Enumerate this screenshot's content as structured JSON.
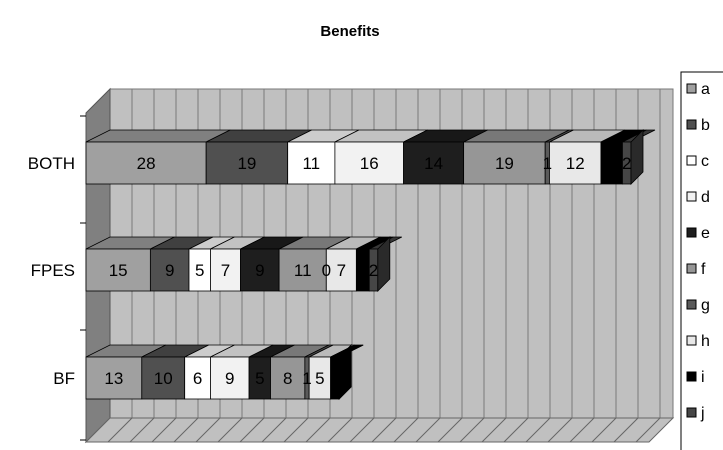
{
  "chart_data": {
    "type": "bar",
    "orientation": "horizontal",
    "stacked": true,
    "three_d": true,
    "title": "Benefits",
    "categories": [
      "BOTH",
      "FPES",
      "BF"
    ],
    "series": [
      {
        "name": "a",
        "values": [
          28,
          15,
          13
        ],
        "color": "#a0a0a0"
      },
      {
        "name": "b",
        "values": [
          19,
          9,
          10
        ],
        "color": "#505050"
      },
      {
        "name": "c",
        "values": [
          11,
          5,
          6
        ],
        "color": "#ffffff"
      },
      {
        "name": "d",
        "values": [
          16,
          7,
          9
        ],
        "color": "#f2f2f2"
      },
      {
        "name": "e",
        "values": [
          14,
          9,
          5
        ],
        "color": "#1e1e1e"
      },
      {
        "name": "f",
        "values": [
          19,
          11,
          8
        ],
        "color": "#969696"
      },
      {
        "name": "g",
        "values": [
          1,
          0,
          1
        ],
        "color": "#5a5a5a"
      },
      {
        "name": "h",
        "values": [
          12,
          7,
          5
        ],
        "color": "#e8e8e8"
      },
      {
        "name": "i",
        "values": [
          5,
          3,
          2
        ],
        "color": "#000000"
      },
      {
        "name": "j",
        "values": [
          2,
          2,
          0
        ],
        "color": "#464646"
      }
    ],
    "legend": "right",
    "grid": true,
    "wall_color": "#c0c0c0",
    "side_wall_color": "#808080"
  }
}
